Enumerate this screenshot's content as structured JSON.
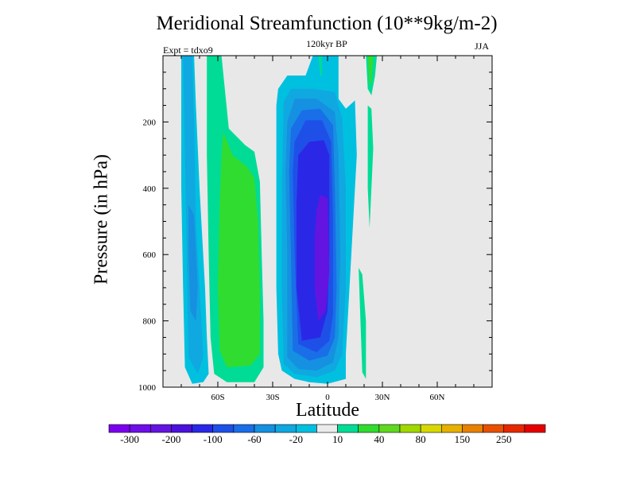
{
  "chart_data": {
    "type": "heatmap",
    "title": "Meridional Streamfunction (10**9kg/m-2)",
    "subtitle": "120kyr BP",
    "left_label": "Expt = tdxo9",
    "right_label": "JJA",
    "xlabel": "Latitude",
    "ylabel": "Pressure (in hPa)",
    "xlim": [
      -90,
      90
    ],
    "ylim": [
      1000,
      0
    ],
    "x_ticks": [
      {
        "value": -60,
        "label": "60S"
      },
      {
        "value": -30,
        "label": "30S"
      },
      {
        "value": 0,
        "label": "0"
      },
      {
        "value": 30,
        "label": "30N"
      },
      {
        "value": 60,
        "label": "60N"
      }
    ],
    "y_ticks": [
      {
        "value": 200,
        "label": "200"
      },
      {
        "value": 400,
        "label": "400"
      },
      {
        "value": 600,
        "label": "600"
      },
      {
        "value": 800,
        "label": "800"
      },
      {
        "value": 1000,
        "label": "1000"
      }
    ],
    "background_color": "#e8e8e8",
    "contour_levels": [
      -300,
      -250,
      -200,
      -150,
      -100,
      -80,
      -60,
      -40,
      -20,
      -10,
      10,
      20,
      40,
      60,
      80,
      100,
      150,
      200,
      250,
      300
    ],
    "colorbar": {
      "colors": [
        "#7b00ee",
        "#6e0fe8",
        "#6414e0",
        "#4b10dc",
        "#2a28e6",
        "#1e50e8",
        "#1a6ee8",
        "#1690e0",
        "#10a8e0",
        "#00c0e0",
        "#ebebeb",
        "#00dc96",
        "#30dc30",
        "#60d820",
        "#a0d800",
        "#d8d800",
        "#e8b000",
        "#e88000",
        "#e85000",
        "#e62800",
        "#e60000"
      ],
      "labels": [
        {
          "after_box": 1,
          "text": "-300"
        },
        {
          "after_box": 3,
          "text": "-200"
        },
        {
          "after_box": 5,
          "text": "-100"
        },
        {
          "after_box": 7,
          "text": "-60"
        },
        {
          "after_box": 9,
          "text": "-20"
        },
        {
          "after_box": 11,
          "text": "10"
        },
        {
          "after_box": 13,
          "text": "40"
        },
        {
          "after_box": 15,
          "text": "80"
        },
        {
          "after_box": 17,
          "text": "150"
        },
        {
          "after_box": 19,
          "text": "250"
        }
      ]
    },
    "filled_regions": [
      {
        "name": "sh-high-lat-cell-outer",
        "level": -10,
        "color": "#00c0e0",
        "polygon": [
          [
            -80,
            0
          ],
          [
            -73,
            0
          ],
          [
            -72,
            150
          ],
          [
            -70,
            400
          ],
          [
            -67,
            700
          ],
          [
            -66,
            850
          ],
          [
            -65,
            960
          ],
          [
            -68,
            985
          ],
          [
            -74,
            990
          ],
          [
            -78,
            940
          ],
          [
            -79,
            700
          ],
          [
            -80,
            400
          ]
        ]
      },
      {
        "name": "sh-high-lat-cell-inner",
        "level": -20,
        "color": "#10a8e0",
        "polygon": [
          [
            -79,
            0
          ],
          [
            -74,
            0
          ],
          [
            -73,
            200
          ],
          [
            -72,
            500
          ],
          [
            -69,
            800
          ],
          [
            -68,
            910
          ],
          [
            -71,
            960
          ],
          [
            -76,
            910
          ],
          [
            -77,
            600
          ],
          [
            -78,
            300
          ]
        ]
      },
      {
        "name": "sh-high-lat-cell-core",
        "level": -40,
        "color": "#1690e0",
        "polygon": [
          [
            -76,
            450
          ],
          [
            -73,
            480
          ],
          [
            -71,
            700
          ],
          [
            -72,
            800
          ],
          [
            -75,
            770
          ],
          [
            -76,
            600
          ]
        ]
      },
      {
        "name": "sh-ferrel-cell-outer",
        "level": 10,
        "color": "#00dc96",
        "polygon": [
          [
            -66,
            0
          ],
          [
            -58,
            0
          ],
          [
            -56,
            110
          ],
          [
            -54,
            220
          ],
          [
            -45,
            270
          ],
          [
            -40,
            290
          ],
          [
            -37,
            380
          ],
          [
            -36,
            600
          ],
          [
            -35,
            800
          ],
          [
            -35,
            940
          ],
          [
            -40,
            985
          ],
          [
            -55,
            985
          ],
          [
            -62,
            960
          ],
          [
            -64,
            850
          ],
          [
            -65,
            600
          ],
          [
            -66,
            300
          ]
        ]
      },
      {
        "name": "sh-ferrel-cell-inner",
        "level": 20,
        "color": "#30dc30",
        "polygon": [
          [
            -57,
            230
          ],
          [
            -52,
            300
          ],
          [
            -44,
            335
          ],
          [
            -40,
            370
          ],
          [
            -38,
            500
          ],
          [
            -37,
            700
          ],
          [
            -37,
            900
          ],
          [
            -42,
            935
          ],
          [
            -55,
            940
          ],
          [
            -59,
            890
          ],
          [
            -60,
            700
          ],
          [
            -59,
            450
          ],
          [
            -58,
            300
          ]
        ]
      },
      {
        "name": "hadley-cell-outer",
        "level": -10,
        "color": "#00c0e0",
        "polygon": [
          [
            -27,
            100
          ],
          [
            -22,
            60
          ],
          [
            -12,
            60
          ],
          [
            -8,
            0
          ],
          [
            6,
            0
          ],
          [
            6,
            130
          ],
          [
            10,
            160
          ],
          [
            15,
            135
          ],
          [
            16,
            300
          ],
          [
            14,
            500
          ],
          [
            12,
            700
          ],
          [
            10,
            900
          ],
          [
            10,
            975
          ],
          [
            0,
            990
          ],
          [
            -10,
            985
          ],
          [
            -18,
            975
          ],
          [
            -25,
            950
          ],
          [
            -27,
            900
          ],
          [
            -28,
            700
          ],
          [
            -28,
            500
          ],
          [
            -28,
            300
          ],
          [
            -28,
            150
          ]
        ]
      },
      {
        "name": "hadley-cell-20",
        "level": -20,
        "color": "#10a8e0",
        "polygon": [
          [
            -24,
            140
          ],
          [
            -20,
            100
          ],
          [
            -8,
            100
          ],
          [
            4,
            110
          ],
          [
            8,
            190
          ],
          [
            10,
            400
          ],
          [
            10,
            700
          ],
          [
            8,
            900
          ],
          [
            4,
            950
          ],
          [
            -6,
            970
          ],
          [
            -18,
            960
          ],
          [
            -24,
            930
          ],
          [
            -25,
            700
          ],
          [
            -25,
            400
          ]
        ]
      },
      {
        "name": "hadley-cell-40",
        "level": -40,
        "color": "#1690e0",
        "polygon": [
          [
            -22,
            200
          ],
          [
            -18,
            130
          ],
          [
            -6,
            130
          ],
          [
            4,
            170
          ],
          [
            6,
            300
          ],
          [
            7,
            600
          ],
          [
            6,
            850
          ],
          [
            3,
            925
          ],
          [
            -6,
            950
          ],
          [
            -16,
            945
          ],
          [
            -22,
            910
          ],
          [
            -22,
            600
          ],
          [
            -23,
            350
          ]
        ]
      },
      {
        "name": "hadley-cell-60",
        "level": -60,
        "color": "#1a6ee8",
        "polygon": [
          [
            -20,
            220
          ],
          [
            -14,
            165
          ],
          [
            -4,
            160
          ],
          [
            3,
            210
          ],
          [
            4,
            400
          ],
          [
            5,
            700
          ],
          [
            4,
            850
          ],
          [
            0,
            905
          ],
          [
            -10,
            920
          ],
          [
            -19,
            890
          ],
          [
            -20,
            600
          ],
          [
            -21,
            350
          ]
        ]
      },
      {
        "name": "hadley-cell-80",
        "level": -80,
        "color": "#1e50e8",
        "polygon": [
          [
            -18,
            260
          ],
          [
            -12,
            195
          ],
          [
            -3,
            195
          ],
          [
            2,
            260
          ],
          [
            3,
            500
          ],
          [
            3,
            780
          ],
          [
            1,
            860
          ],
          [
            -6,
            895
          ],
          [
            -16,
            870
          ],
          [
            -18,
            600
          ],
          [
            -19,
            350
          ]
        ]
      },
      {
        "name": "hadley-cell-100",
        "level": -100,
        "color": "#2a28e6",
        "polygon": [
          [
            -16,
            300
          ],
          [
            -10,
            260
          ],
          [
            -2,
            255
          ],
          [
            1,
            300
          ],
          [
            1,
            600
          ],
          [
            0,
            770
          ],
          [
            -4,
            850
          ],
          [
            -14,
            860
          ],
          [
            -17,
            700
          ],
          [
            -17,
            450
          ]
        ]
      },
      {
        "name": "hadley-cell-150",
        "level": -150,
        "color": "#6414e0",
        "polygon": [
          [
            -6,
            470
          ],
          [
            -4,
            420
          ],
          [
            0,
            430
          ],
          [
            1,
            650
          ],
          [
            -1,
            770
          ],
          [
            -5,
            800
          ],
          [
            -7,
            700
          ],
          [
            -7,
            550
          ]
        ]
      },
      {
        "name": "nh-tropics-cell-a",
        "level": 10,
        "color": "#00dc96",
        "polygon": [
          [
            21,
            0
          ],
          [
            27,
            0
          ],
          [
            26,
            60
          ],
          [
            24,
            120
          ],
          [
            22,
            100
          ]
        ]
      },
      {
        "name": "nh-tropics-cell-b",
        "level": 10,
        "color": "#00dc96",
        "polygon": [
          [
            22,
            150
          ],
          [
            24,
            160
          ],
          [
            25,
            280
          ],
          [
            24,
            400
          ],
          [
            23,
            520
          ],
          [
            22,
            400
          ]
        ]
      },
      {
        "name": "nh-tropics-cell-c",
        "level": 10,
        "color": "#00dc96",
        "polygon": [
          [
            17,
            640
          ],
          [
            19,
            660
          ],
          [
            21,
            800
          ],
          [
            21,
            975
          ],
          [
            19,
            955
          ],
          [
            18,
            800
          ]
        ]
      },
      {
        "name": "nh-upper-cell-green",
        "level": 20,
        "color": "#30dc30",
        "polygon": [
          [
            22,
            0
          ],
          [
            25,
            0
          ],
          [
            24,
            80
          ],
          [
            23,
            90
          ]
        ]
      },
      {
        "name": "equator-upper-cell",
        "level": 10,
        "color": "#00dc96",
        "polygon": [
          [
            -5,
            0
          ],
          [
            -3,
            0
          ],
          [
            -3,
            60
          ],
          [
            -4,
            60
          ]
        ]
      }
    ]
  }
}
